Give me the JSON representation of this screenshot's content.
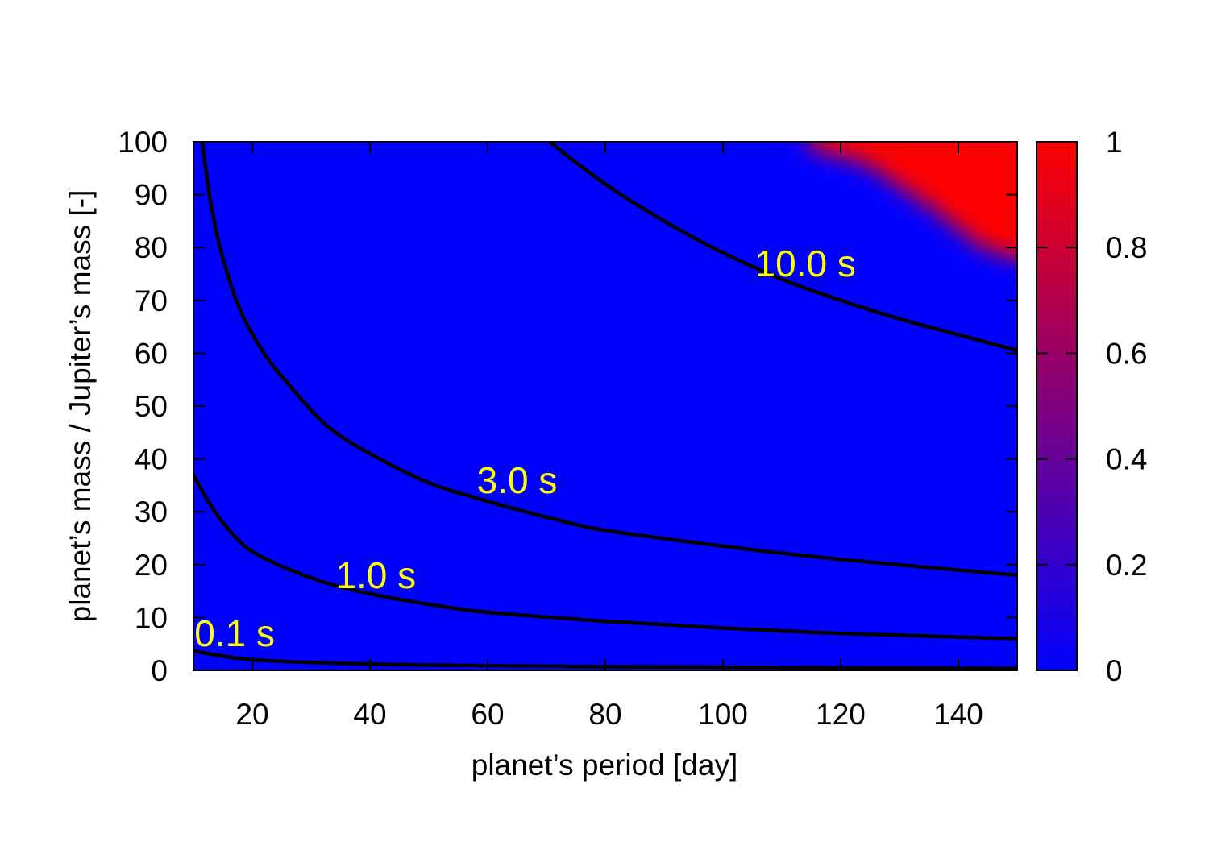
{
  "chart_data": {
    "type": "heatmap",
    "title": "",
    "xlabel": "planet’s period [day]",
    "ylabel": "planet’s mass  / Jupiter’s mass [-]",
    "xlim": [
      10,
      150
    ],
    "ylim": [
      0,
      100
    ],
    "xticks": [
      20,
      40,
      60,
      80,
      100,
      120,
      140
    ],
    "yticks": [
      0,
      10,
      20,
      30,
      40,
      50,
      60,
      70,
      80,
      90,
      100
    ],
    "colorbar": {
      "range": [
        0,
        1
      ],
      "ticks": [
        "0",
        "0.2",
        "0.4",
        "0.6",
        "0.8",
        "1"
      ],
      "low_color": "#0000ff",
      "high_color": "#ff0000"
    },
    "heat_region": {
      "description_value": "values near 1 in region",
      "x_range": [
        110,
        148
      ],
      "y_range": [
        78,
        100
      ]
    },
    "contours": [
      {
        "label": "0.1 s",
        "label_at": [
          17,
          7
        ],
        "points": [
          [
            10,
            3.7
          ],
          [
            20,
            2.0
          ],
          [
            40,
            1.2
          ],
          [
            60,
            0.9
          ],
          [
            80,
            0.7
          ],
          [
            100,
            0.6
          ],
          [
            120,
            0.5
          ],
          [
            150,
            0.4
          ]
        ]
      },
      {
        "label": "1.0 s",
        "label_at": [
          41,
          18
        ],
        "points": [
          [
            10,
            37
          ],
          [
            12,
            33
          ],
          [
            15,
            28
          ],
          [
            20,
            22.5
          ],
          [
            30,
            17.5
          ],
          [
            40,
            14.5
          ],
          [
            50,
            12.5
          ],
          [
            60,
            11
          ],
          [
            80,
            9.3
          ],
          [
            100,
            8
          ],
          [
            120,
            7
          ],
          [
            150,
            6
          ]
        ]
      },
      {
        "label": "3.0 s",
        "label_at": [
          65,
          36
        ],
        "points": [
          [
            11.5,
            100
          ],
          [
            13,
            88
          ],
          [
            15,
            78
          ],
          [
            18,
            68
          ],
          [
            22,
            60
          ],
          [
            27,
            53
          ],
          [
            33,
            46
          ],
          [
            40,
            41
          ],
          [
            50,
            35.5
          ],
          [
            60,
            32
          ],
          [
            70,
            29
          ],
          [
            80,
            26.5
          ],
          [
            100,
            23.5
          ],
          [
            120,
            21
          ],
          [
            150,
            18
          ]
        ]
      },
      {
        "label": "10.0 s",
        "label_at": [
          114,
          77
        ],
        "points": [
          [
            70.5,
            100
          ],
          [
            80,
            92
          ],
          [
            90,
            85
          ],
          [
            100,
            79
          ],
          [
            110,
            74
          ],
          [
            120,
            70
          ],
          [
            130,
            66.5
          ],
          [
            140,
            63.5
          ],
          [
            150,
            60.5
          ]
        ]
      }
    ]
  }
}
